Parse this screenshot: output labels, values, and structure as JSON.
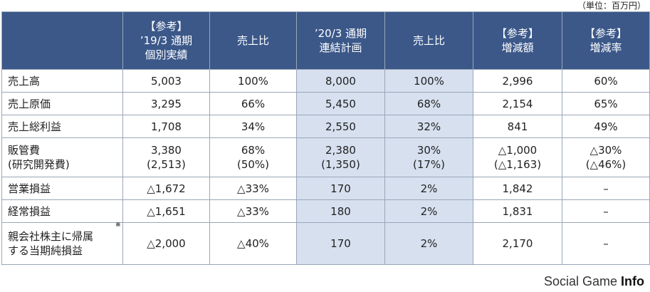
{
  "unit_note": "（単位：百万円）",
  "header": {
    "col1": [
      "【参考】",
      "’19/3 通期",
      "個別実績"
    ],
    "col2": "売上比",
    "col3": [
      "’20/3 通期",
      "連結計画"
    ],
    "col4": "売上比",
    "col5": [
      "【参考】",
      "増減額"
    ],
    "col6": [
      "【参考】",
      "増減率"
    ]
  },
  "rows": [
    {
      "label": [
        "売上高"
      ],
      "c1": [
        "5,003"
      ],
      "c2": [
        "100%"
      ],
      "c3": [
        "8,000"
      ],
      "c4": [
        "100%"
      ],
      "c5": [
        "2,996"
      ],
      "c6": [
        "60%"
      ]
    },
    {
      "label": [
        "売上原価"
      ],
      "c1": [
        "3,295"
      ],
      "c2": [
        "66%"
      ],
      "c3": [
        "5,450"
      ],
      "c4": [
        "68%"
      ],
      "c5": [
        "2,154"
      ],
      "c6": [
        "65%"
      ]
    },
    {
      "label": [
        "売上総利益"
      ],
      "c1": [
        "1,708"
      ],
      "c2": [
        "34%"
      ],
      "c3": [
        "2,550"
      ],
      "c4": [
        "32%"
      ],
      "c5": [
        "841"
      ],
      "c6": [
        "49%"
      ]
    },
    {
      "label": [
        "販管費",
        "(研究開発費)"
      ],
      "c1": [
        "3,380",
        "(2,513)"
      ],
      "c2": [
        "68%",
        "(50%)"
      ],
      "c3": [
        "2,380",
        "(1,350)"
      ],
      "c4": [
        "30%",
        "(17%)"
      ],
      "c5": [
        "△1,000",
        "(△1,163)"
      ],
      "c6": [
        "△30%",
        "(△46%)"
      ]
    },
    {
      "label": [
        "営業損益"
      ],
      "c1": [
        "△1,672"
      ],
      "c2": [
        "△33%"
      ],
      "c3": [
        "170"
      ],
      "c4": [
        "2%"
      ],
      "c5": [
        "1,842"
      ],
      "c6": [
        "–"
      ]
    },
    {
      "label": [
        "経常損益"
      ],
      "c1": [
        "△1,651"
      ],
      "c2": [
        "△33%"
      ],
      "c3": [
        "180"
      ],
      "c4": [
        "2%"
      ],
      "c5": [
        "1,831"
      ],
      "c6": [
        "–"
      ]
    },
    {
      "label": [
        "親会社株主に帰属",
        "する当期純損益"
      ],
      "note": "※",
      "c1": [
        "△2,000"
      ],
      "c2": [
        "△40%"
      ],
      "c3": [
        "170"
      ],
      "c4": [
        "2%"
      ],
      "c5": [
        "2,170"
      ],
      "c6": [
        "–"
      ]
    }
  ],
  "watermark": {
    "prefix": "Social Game ",
    "bold": "Info"
  }
}
